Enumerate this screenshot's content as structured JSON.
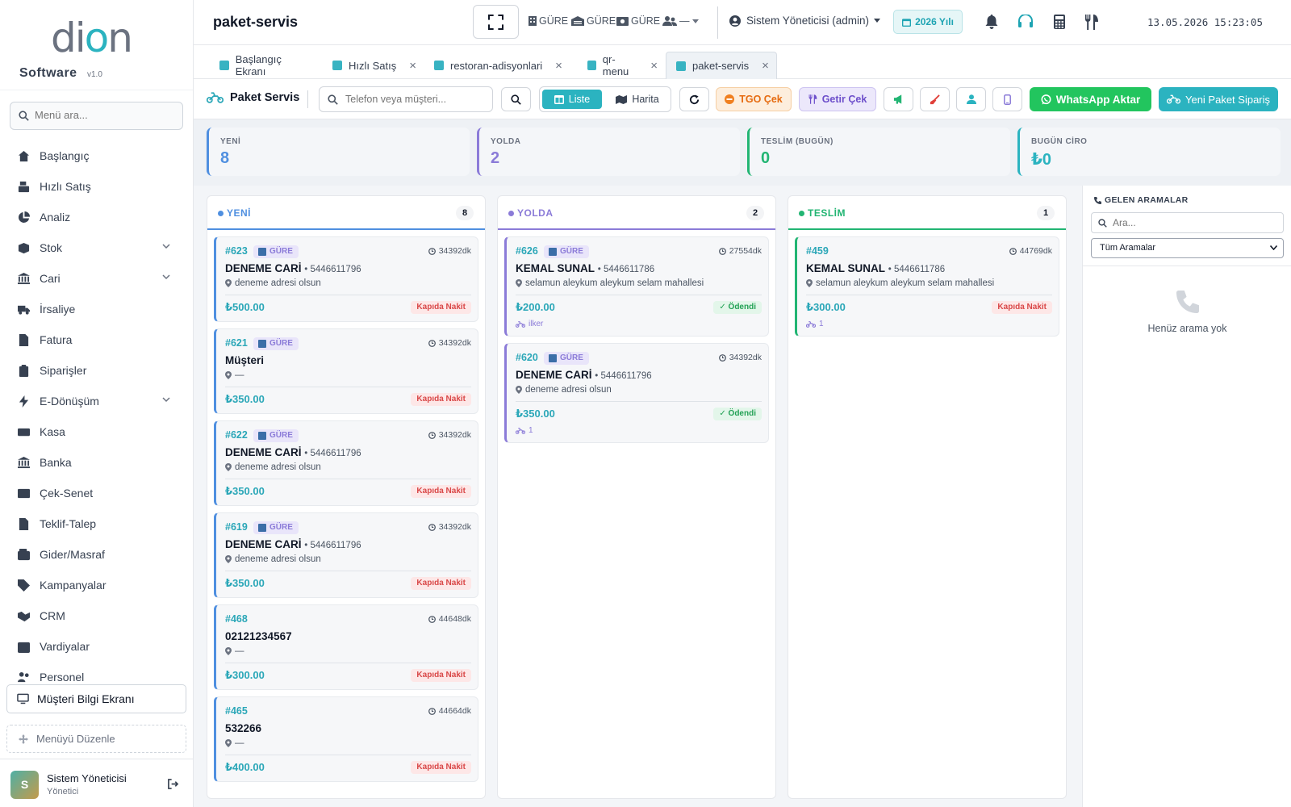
{
  "sidebar": {
    "logo_text_left": "di",
    "logo_text_mid": "o",
    "logo_text_right": "n",
    "brand": "Software",
    "version": "v1.0",
    "search_placeholder": "Menü ara...",
    "items": [
      {
        "label": "Başlangıç",
        "icon": "home-icon",
        "chevron": false
      },
      {
        "label": "Hızlı Satış",
        "icon": "cash-register-icon",
        "chevron": false
      },
      {
        "label": "Analiz",
        "icon": "pie-chart-icon",
        "chevron": false
      },
      {
        "label": "Stok",
        "icon": "box-icon",
        "chevron": true
      },
      {
        "label": "Cari",
        "icon": "bank-icon",
        "chevron": true
      },
      {
        "label": "İrsaliye",
        "icon": "truck-icon",
        "chevron": false
      },
      {
        "label": "Fatura",
        "icon": "invoice-icon",
        "chevron": false
      },
      {
        "label": "Siparişler",
        "icon": "clipboard-icon",
        "chevron": false
      },
      {
        "label": "E-Dönüşüm",
        "icon": "bolt-icon",
        "chevron": true
      },
      {
        "label": "Kasa",
        "icon": "money-icon",
        "chevron": false
      },
      {
        "label": "Banka",
        "icon": "bank-icon",
        "chevron": false
      },
      {
        "label": "Çek-Senet",
        "icon": "card-icon",
        "chevron": false
      },
      {
        "label": "Teklif-Talep",
        "icon": "document-icon",
        "chevron": false
      },
      {
        "label": "Gider/Masraf",
        "icon": "wallet-icon",
        "chevron": false
      },
      {
        "label": "Kampanyalar",
        "icon": "tag-icon",
        "chevron": false
      },
      {
        "label": "CRM",
        "icon": "handshake-icon",
        "chevron": false
      },
      {
        "label": "Vardiyalar",
        "icon": "calendar-icon",
        "chevron": false
      },
      {
        "label": "Personel",
        "icon": "users-icon",
        "chevron": false
      }
    ],
    "screen_button": "Müşteri Bilgi Ekranı",
    "edit_menu": "Menüyü Düzenle",
    "user_initial": "S",
    "user_name": "Sistem Yöneticisi",
    "user_role": "Yönetici"
  },
  "topbar": {
    "title": "paket-servis",
    "selects": [
      "GÜRE",
      "GÜRE",
      "GÜRE",
      "—"
    ],
    "admin": "Sistem Yöneticisi (admin)",
    "year": "2026 Yılı",
    "datetime": "13.05.2026 15:23:05"
  },
  "tabs": [
    {
      "label": "Başlangıç Ekranı",
      "closable": false,
      "active": false
    },
    {
      "label": "Hızlı Satış",
      "closable": true,
      "active": false
    },
    {
      "label": "restoran-adisyonlari",
      "closable": true,
      "active": false
    },
    {
      "label": "qr-menu",
      "closable": true,
      "active": false
    },
    {
      "label": "paket-servis",
      "closable": true,
      "active": true
    }
  ],
  "toolbar": {
    "title": "Paket Servis",
    "search_placeholder": "Telefon veya müşteri...",
    "view_list": "Liste",
    "view_map": "Harita",
    "tgo": "TGO Çek",
    "getir": "Getir Çek",
    "whatsapp": "WhatsApp Aktar",
    "new_order": "Yeni Paket Sipariş"
  },
  "stats": [
    {
      "label": "YENİ",
      "value": "8",
      "color": "#4f8fe0"
    },
    {
      "label": "YOLDA",
      "value": "2",
      "color": "#8b7bd8"
    },
    {
      "label": "TESLİM (BUGÜN)",
      "value": "0",
      "color": "#22b573"
    },
    {
      "label": "BUGÜN CİRO",
      "value": "₺0",
      "color": "#2bb3c0"
    }
  ],
  "columns": [
    {
      "label": "YENİ",
      "count": "8",
      "color": "#4f8fe0",
      "cards": [
        {
          "no": "#623",
          "tag": "GÜRE",
          "time": "34392dk",
          "name": "DENEME CARİ",
          "phone": "• 5446611796",
          "address": "deneme adresi olsun",
          "price": "₺500.00",
          "payment": "Kapıda Nakit",
          "paid": false,
          "courier": ""
        },
        {
          "no": "#621",
          "tag": "GÜRE",
          "time": "34392dk",
          "name": "Müşteri",
          "phone": "",
          "address": "—",
          "price": "₺350.00",
          "payment": "Kapıda Nakit",
          "paid": false,
          "courier": ""
        },
        {
          "no": "#622",
          "tag": "GÜRE",
          "time": "34392dk",
          "name": "DENEME CARİ",
          "phone": "• 5446611796",
          "address": "deneme adresi olsun",
          "price": "₺350.00",
          "payment": "Kapıda Nakit",
          "paid": false,
          "courier": ""
        },
        {
          "no": "#619",
          "tag": "GÜRE",
          "time": "34392dk",
          "name": "DENEME CARİ",
          "phone": "• 5446611796",
          "address": "deneme adresi olsun",
          "price": "₺350.00",
          "payment": "Kapıda Nakit",
          "paid": false,
          "courier": ""
        },
        {
          "no": "#468",
          "tag": "",
          "time": "44648dk",
          "name": "02121234567",
          "phone": "",
          "address": "—",
          "price": "₺300.00",
          "payment": "Kapıda Nakit",
          "paid": false,
          "courier": ""
        },
        {
          "no": "#465",
          "tag": "",
          "time": "44664dk",
          "name": "532266",
          "phone": "",
          "address": "—",
          "price": "₺400.00",
          "payment": "Kapıda Nakit",
          "paid": false,
          "courier": ""
        }
      ]
    },
    {
      "label": "YOLDA",
      "count": "2",
      "color": "#8b7bd8",
      "cards": [
        {
          "no": "#626",
          "tag": "GÜRE",
          "time": "27554dk",
          "name": "KEMAL SUNAL",
          "phone": "• 5446611786",
          "address": "selamun aleykum aleykum selam mahallesi",
          "price": "₺200.00",
          "payment": "✓ Ödendi",
          "paid": true,
          "courier": "ilker"
        },
        {
          "no": "#620",
          "tag": "GÜRE",
          "time": "34392dk",
          "name": "DENEME CARİ",
          "phone": "• 5446611796",
          "address": "deneme adresi olsun",
          "price": "₺350.00",
          "payment": "✓ Ödendi",
          "paid": true,
          "courier": "1"
        }
      ]
    },
    {
      "label": "TESLİM",
      "count": "1",
      "color": "#22b573",
      "cards": [
        {
          "no": "#459",
          "tag": "",
          "time": "44769dk",
          "name": "KEMAL SUNAL",
          "phone": "• 5446611786",
          "address": "selamun aleykum aleykum selam mahallesi",
          "price": "₺300.00",
          "payment": "Kapıda Nakit",
          "paid": false,
          "courier": "1"
        }
      ]
    }
  ],
  "calls": {
    "title": "GELEN ARAMALAR",
    "search_placeholder": "Ara...",
    "filter": "Tüm Aramalar",
    "empty": "Henüz arama yok"
  }
}
